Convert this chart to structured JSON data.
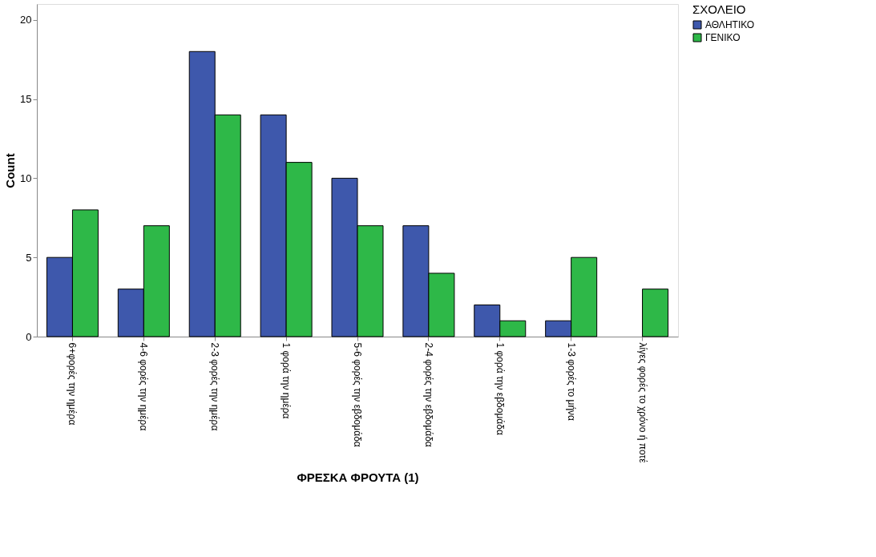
{
  "chart_data": {
    "type": "bar",
    "xlabel": "ΦΡΕΣΚΑ ΦΡΟΥΤΑ (1)",
    "ylabel": "Count",
    "legend_title": "ΣΧΟΛΕΙΟ",
    "categories": [
      "6+φορές την ημέρα",
      "4-6 φορές την ημέρα",
      "2-3 φορές την ημέρα",
      "1 φορά την ημέρα",
      "5-6 φορές την εβδομάδα",
      "2-4 φορές την εβδομάδα",
      "1 φορά την εβδομάδα",
      "1-3 φορές το μήνα",
      "λίγες φορές το χρόνο ή ποτέ"
    ],
    "series": [
      {
        "name": "ΑΘΛΗΤΙΚΟ",
        "color": "#3e58ac",
        "values": [
          5,
          3,
          18,
          14,
          10,
          7,
          2,
          1,
          null
        ]
      },
      {
        "name": "ΓΕΝΙΚΟ",
        "color": "#2eb848",
        "values": [
          8,
          7,
          14,
          11,
          7,
          4,
          1,
          5,
          3
        ]
      }
    ],
    "ylim": [
      0,
      21
    ],
    "yticks": [
      0,
      5,
      10,
      15,
      20
    ],
    "grid": false,
    "legend": "top right"
  }
}
